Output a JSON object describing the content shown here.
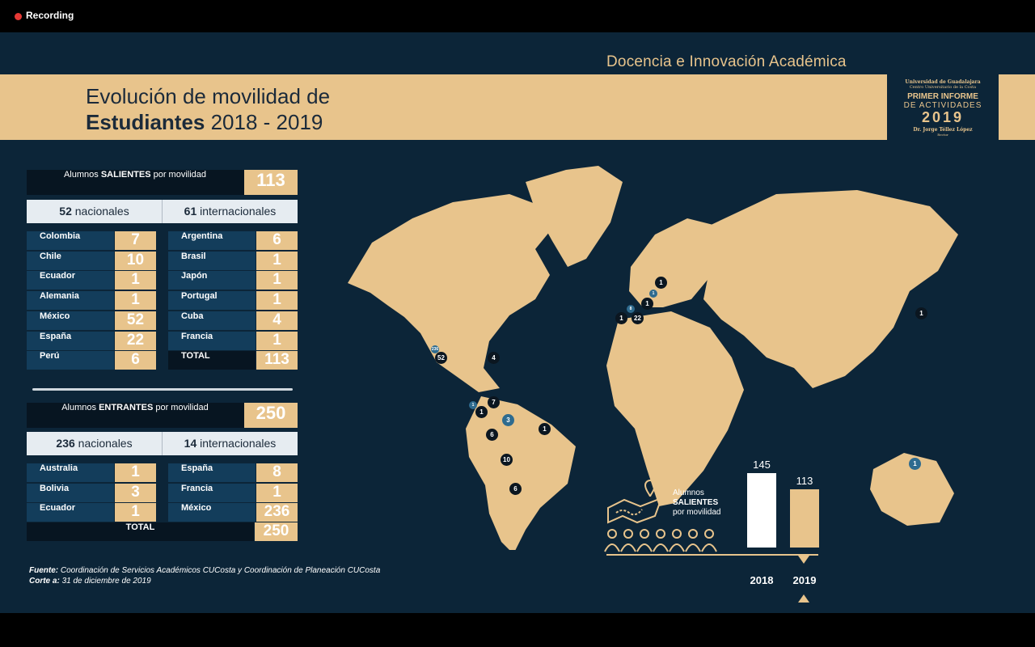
{
  "recording": {
    "label": "Recording"
  },
  "slide": {
    "section": "Docencia e Innovación Académica",
    "title_line1": "Evolución de movilidad de",
    "title_line2_bold": "Estudiantes",
    "title_line2_rest": " 2018 - 2019",
    "logo": {
      "line1": "Universidad de Guadalajara",
      "line2": "Centro Universitario de la Costa",
      "line3": "PRIMER INFORME",
      "line4": "DE ACTIVIDADES",
      "line5": "2019",
      "line6": "Dr. Jorge Téllez López",
      "line7": "Rector"
    }
  },
  "salientes": {
    "header_pre": "Alumnos ",
    "header_bold": "SALIENTES",
    "header_post": " por movilidad",
    "total": "113",
    "nacionales_num": "52",
    "nacionales_label": " nacionales",
    "internacionales_num": "61",
    "internacionales_label": " internacionales",
    "left": [
      {
        "name": "Colombia",
        "value": "7"
      },
      {
        "name": "Chile",
        "value": "10"
      },
      {
        "name": "Ecuador",
        "value": "1"
      },
      {
        "name": "Alemania",
        "value": "1"
      },
      {
        "name": "México",
        "value": "52"
      },
      {
        "name": "España",
        "value": "22"
      },
      {
        "name": "Perú",
        "value": "6"
      }
    ],
    "right": [
      {
        "name": "Argentina",
        "value": "6"
      },
      {
        "name": "Brasil",
        "value": "1"
      },
      {
        "name": "Japón",
        "value": "1"
      },
      {
        "name": "Portugal",
        "value": "1"
      },
      {
        "name": "Cuba",
        "value": "4"
      },
      {
        "name": "Francia",
        "value": "1"
      },
      {
        "name": "TOTAL",
        "value": "113"
      }
    ]
  },
  "entrantes": {
    "header_pre": "Alumnos ",
    "header_bold": "ENTRANTES",
    "header_post": " por movilidad",
    "total": "250",
    "nacionales_num": "236",
    "nacionales_label": " nacionales",
    "internacionales_num": "14",
    "internacionales_label": " internacionales",
    "left": [
      {
        "name": "Australia",
        "value": "1"
      },
      {
        "name": "Bolivia",
        "value": "3"
      },
      {
        "name": "Ecuador",
        "value": "1"
      }
    ],
    "right": [
      {
        "name": "España",
        "value": "8"
      },
      {
        "name": "Francia",
        "value": "1"
      },
      {
        "name": "México",
        "value": "236"
      }
    ],
    "total_label": "TOTAL",
    "total_value": "250"
  },
  "footnote": {
    "fuente_label": "Fuente:",
    "fuente_text": " Coordinación de Servicios Académicos CUCosta y Coordinación de Planeación CUCosta",
    "corte_label": "Corte a:",
    "corte_text": " 31 de diciembre de 2019"
  },
  "map_markers": [
    "52",
    "236",
    "4",
    "1",
    "7",
    "1",
    "3",
    "6",
    "1",
    "10",
    "6",
    "1",
    "1",
    "8",
    "1",
    "22",
    "1",
    "1",
    "1"
  ],
  "chart_data": {
    "type": "bar",
    "categories": [
      "2018",
      "2019"
    ],
    "values": [
      145,
      113
    ],
    "ylim": [
      0,
      150
    ],
    "colors": [
      "#ffffff",
      "#e8c48c"
    ],
    "legend_pre": "Alumnos",
    "legend_bold": "SALIENTES",
    "legend_post": "por movilidad"
  }
}
